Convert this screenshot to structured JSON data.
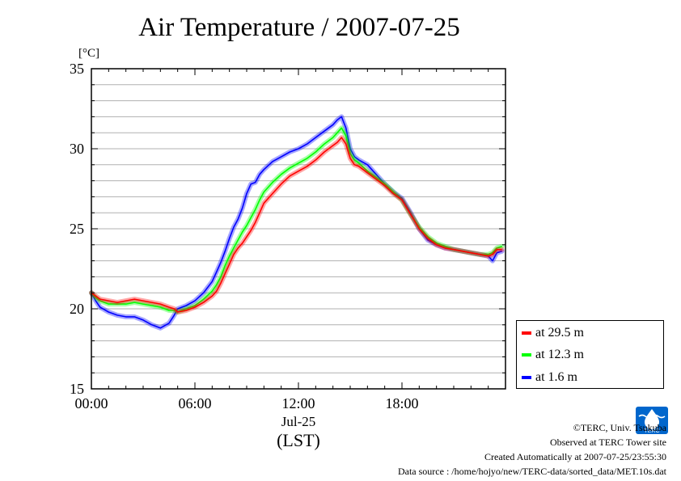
{
  "title": "Air Temperature / 2007-07-25",
  "chart_data": {
    "type": "line",
    "title": "Air Temperature / 2007-07-25",
    "ylabel": "[°C]",
    "xlabel_date": "Jul-25",
    "xlabel_tz": "(LST)",
    "ylim": [
      15,
      35
    ],
    "yticks": [
      15,
      20,
      25,
      30,
      35
    ],
    "ytick_labels": [
      "15",
      "20",
      "25",
      "30",
      "35"
    ],
    "xlim": [
      0,
      24
    ],
    "xticks": [
      0,
      6,
      12,
      18
    ],
    "xtick_labels": [
      "00:00",
      "06:00",
      "12:00",
      "18:00"
    ],
    "grid": "horizontal",
    "legend_position": "right",
    "series": [
      {
        "name": "at 29.5 m",
        "color": "#ff0000",
        "x": [
          0.0,
          0.25,
          0.5,
          1.0,
          1.5,
          2.0,
          2.5,
          3.0,
          3.5,
          4.0,
          4.5,
          4.8,
          5.0,
          5.5,
          6.0,
          6.5,
          7.0,
          7.25,
          7.5,
          7.75,
          8.0,
          8.25,
          8.5,
          8.75,
          9.0,
          9.25,
          9.5,
          9.75,
          10.0,
          10.5,
          11.0,
          11.5,
          12.0,
          12.5,
          13.0,
          13.5,
          14.0,
          14.25,
          14.5,
          14.75,
          15.0,
          15.25,
          15.5,
          16.0,
          16.5,
          17.0,
          17.5,
          18.0,
          18.5,
          19.0,
          19.5,
          20.0,
          20.5,
          21.0,
          21.5,
          22.0,
          22.5,
          23.0,
          23.25,
          23.5,
          23.8
        ],
        "values": [
          21.0,
          20.8,
          20.6,
          20.5,
          20.4,
          20.5,
          20.6,
          20.5,
          20.4,
          20.3,
          20.1,
          20.0,
          19.8,
          19.9,
          20.1,
          20.4,
          20.8,
          21.1,
          21.6,
          22.2,
          22.8,
          23.4,
          23.8,
          24.1,
          24.5,
          24.9,
          25.4,
          26.0,
          26.6,
          27.2,
          27.8,
          28.3,
          28.6,
          28.9,
          29.3,
          29.8,
          30.2,
          30.4,
          30.7,
          30.3,
          29.4,
          29.0,
          28.9,
          28.5,
          28.1,
          27.7,
          27.2,
          26.8,
          25.9,
          25.0,
          24.4,
          24.0,
          23.8,
          23.7,
          23.6,
          23.5,
          23.4,
          23.3,
          23.4,
          23.7,
          23.7
        ]
      },
      {
        "name": "at 12.3 m",
        "color": "#00ff00",
        "x": [
          0.0,
          0.25,
          0.5,
          1.0,
          1.5,
          2.0,
          2.5,
          3.0,
          3.5,
          4.0,
          4.5,
          4.8,
          5.0,
          5.5,
          6.0,
          6.5,
          7.0,
          7.25,
          7.5,
          7.75,
          8.0,
          8.25,
          8.5,
          8.75,
          9.0,
          9.25,
          9.5,
          9.75,
          10.0,
          10.5,
          11.0,
          11.5,
          12.0,
          12.5,
          13.0,
          13.5,
          14.0,
          14.25,
          14.5,
          14.75,
          15.0,
          15.25,
          15.5,
          16.0,
          16.5,
          17.0,
          17.5,
          18.0,
          18.5,
          19.0,
          19.5,
          20.0,
          20.5,
          21.0,
          21.5,
          22.0,
          22.5,
          23.0,
          23.25,
          23.5,
          23.8
        ],
        "values": [
          21.0,
          20.7,
          20.5,
          20.3,
          20.3,
          20.3,
          20.4,
          20.3,
          20.2,
          20.1,
          19.9,
          19.9,
          19.8,
          20.0,
          20.2,
          20.6,
          21.1,
          21.5,
          22.0,
          22.7,
          23.3,
          23.8,
          24.3,
          24.8,
          25.2,
          25.7,
          26.2,
          26.8,
          27.3,
          27.9,
          28.4,
          28.8,
          29.1,
          29.4,
          29.8,
          30.3,
          30.7,
          31.0,
          31.3,
          30.8,
          29.7,
          29.3,
          29.1,
          28.6,
          28.2,
          27.8,
          27.3,
          26.8,
          25.9,
          25.1,
          24.5,
          24.1,
          23.9,
          23.7,
          23.6,
          23.5,
          23.4,
          23.4,
          23.5,
          23.8,
          23.9
        ]
      },
      {
        "name": "at 1.6 m",
        "color": "#0000ff",
        "x": [
          0.0,
          0.25,
          0.5,
          1.0,
          1.5,
          2.0,
          2.5,
          3.0,
          3.5,
          4.0,
          4.5,
          4.8,
          5.0,
          5.5,
          6.0,
          6.5,
          7.0,
          7.25,
          7.5,
          7.75,
          8.0,
          8.25,
          8.5,
          8.75,
          9.0,
          9.25,
          9.5,
          9.75,
          10.0,
          10.5,
          11.0,
          11.5,
          12.0,
          12.5,
          13.0,
          13.5,
          14.0,
          14.25,
          14.5,
          14.75,
          15.0,
          15.25,
          15.5,
          16.0,
          16.5,
          17.0,
          17.5,
          18.0,
          18.5,
          19.0,
          19.5,
          20.0,
          20.5,
          21.0,
          21.5,
          22.0,
          22.5,
          23.0,
          23.25,
          23.5,
          23.8
        ],
        "values": [
          21.0,
          20.5,
          20.1,
          19.8,
          19.6,
          19.5,
          19.5,
          19.3,
          19.0,
          18.8,
          19.1,
          19.6,
          20.0,
          20.2,
          20.5,
          21.0,
          21.7,
          22.3,
          22.9,
          23.6,
          24.4,
          25.1,
          25.6,
          26.3,
          27.2,
          27.8,
          27.9,
          28.4,
          28.7,
          29.2,
          29.5,
          29.8,
          30.0,
          30.3,
          30.7,
          31.1,
          31.5,
          31.8,
          32.0,
          31.3,
          30.0,
          29.5,
          29.3,
          29.0,
          28.4,
          27.8,
          27.3,
          26.9,
          26.0,
          25.0,
          24.3,
          24.0,
          23.8,
          23.7,
          23.6,
          23.5,
          23.4,
          23.3,
          23.0,
          23.5,
          23.6
        ]
      }
    ]
  },
  "footer": {
    "copyright": "©TERC, Univ. Tsukuba",
    "site": "Observed at TERC Tower site",
    "created": "Created Automatically at 2007-07-25/23:55:30",
    "source": "Data source : /home/hojyo/new/TERC-data/sorted_data/MET.10s.dat"
  },
  "logo": {
    "text": "TERC",
    "color": "#0066cc"
  }
}
